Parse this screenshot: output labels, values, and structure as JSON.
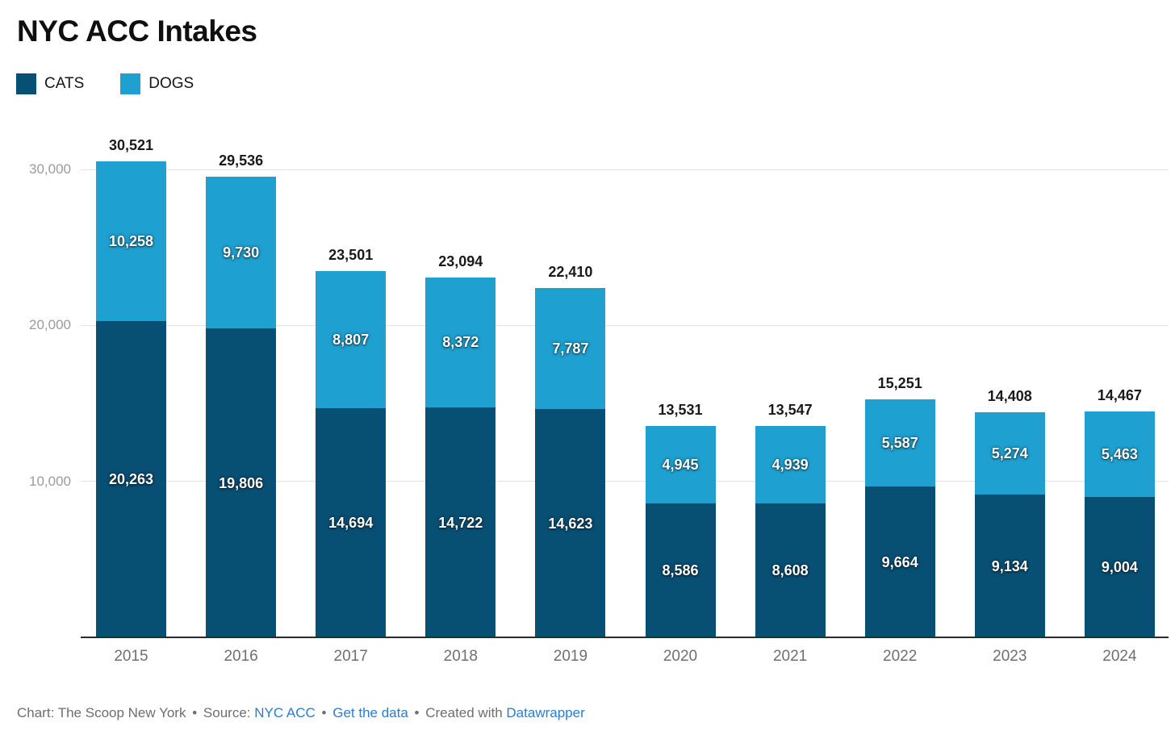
{
  "title": "NYC ACC Intakes",
  "legend": {
    "items": [
      {
        "label": "CATS",
        "color": "#084f74"
      },
      {
        "label": "DOGS",
        "color": "#1ea0d0"
      }
    ]
  },
  "chart_data": {
    "type": "bar",
    "stacked": true,
    "title": "NYC ACC Intakes",
    "categories": [
      "2015",
      "2016",
      "2017",
      "2018",
      "2019",
      "2020",
      "2021",
      "2022",
      "2023",
      "2024"
    ],
    "series": [
      {
        "name": "CATS",
        "color": "#084f74",
        "values": [
          20263,
          19806,
          14694,
          14722,
          14623,
          8586,
          8608,
          9664,
          9134,
          9004
        ]
      },
      {
        "name": "DOGS",
        "color": "#1ea0d0",
        "values": [
          10258,
          9730,
          8807,
          8372,
          7787,
          4945,
          4939,
          5587,
          5274,
          5463
        ]
      }
    ],
    "totals": [
      30521,
      29536,
      23501,
      23094,
      22410,
      13531,
      13547,
      15251,
      14408,
      14467
    ],
    "y_axis": {
      "ticks": [
        10000,
        20000,
        30000
      ],
      "tick_labels": [
        "10,000",
        "20,000",
        "30,000"
      ],
      "range": [
        0,
        31000
      ]
    },
    "grid": true,
    "legend_position": "top-left",
    "value_labels": {
      "inside_segments": true,
      "totals_above_bars": true
    }
  },
  "footer": {
    "chart_credit": "Chart: The Scoop New York",
    "separator": "•",
    "source_label": "Source:",
    "source_link": "NYC ACC",
    "get_data_link": "Get the data",
    "created_with": "Created with",
    "tool_link": "Datawrapper",
    "text_color": "#6e6e6e",
    "link_color": "#2b7bd3"
  }
}
